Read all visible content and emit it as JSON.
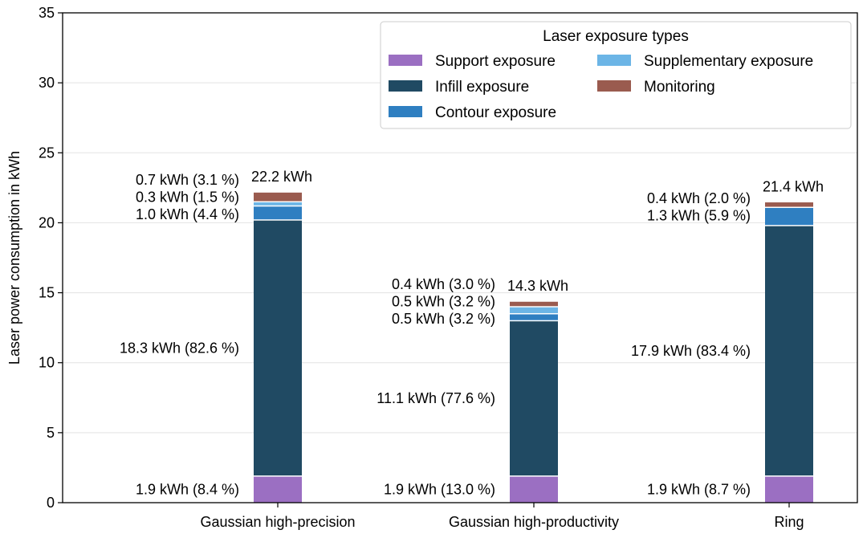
{
  "chart_data": {
    "type": "bar",
    "stacked": true,
    "ylabel": "Laser power consumption in kWh",
    "ylim": [
      0,
      35
    ],
    "yticks": [
      0,
      5,
      10,
      15,
      20,
      25,
      30,
      35
    ],
    "grid": "y",
    "categories": [
      "Gaussian high-precision",
      "Gaussian high-productivity",
      "Ring"
    ],
    "series": [
      {
        "name": "Support exposure",
        "color": "#9b6fc2",
        "values": [
          1.9,
          1.9,
          1.9
        ]
      },
      {
        "name": "Infill exposure",
        "color": "#204a63",
        "values": [
          18.3,
          11.1,
          17.9
        ]
      },
      {
        "name": "Contour exposure",
        "color": "#2f7fc1",
        "values": [
          1.0,
          0.5,
          1.3
        ]
      },
      {
        "name": "Supplementary exposure",
        "color": "#6cb5e6",
        "values": [
          0.3,
          0.5,
          0.0
        ]
      },
      {
        "name": "Monitoring",
        "color": "#9a5b4f",
        "values": [
          0.7,
          0.4,
          0.4
        ]
      }
    ],
    "totals": [
      "22.2 kWh",
      "14.3 kWh",
      "21.4 kWh"
    ],
    "segment_labels": [
      [
        {
          "series": 0,
          "text": "1.9 kWh (8.4 %)"
        },
        {
          "series": 1,
          "text": "18.3 kWh (82.6 %)"
        },
        {
          "series": 2,
          "text": "1.0 kWh (4.4 %)"
        },
        {
          "series": 3,
          "text": "0.3 kWh (1.5 %)"
        },
        {
          "series": 4,
          "text": "0.7 kWh (3.1 %)"
        }
      ],
      [
        {
          "series": 0,
          "text": "1.9 kWh (13.0 %)"
        },
        {
          "series": 1,
          "text": "11.1 kWh (77.6 %)"
        },
        {
          "series": 2,
          "text": "0.5 kWh (3.2 %)"
        },
        {
          "series": 3,
          "text": "0.5 kWh (3.2 %)"
        },
        {
          "series": 4,
          "text": "0.4 kWh (3.0 %)"
        }
      ],
      [
        {
          "series": 0,
          "text": "1.9 kWh (8.7 %)"
        },
        {
          "series": 1,
          "text": "17.9 kWh (83.4 %)"
        },
        {
          "series": 2,
          "text": "1.3 kWh (5.9 %)"
        },
        {
          "series": 4,
          "text": "0.4 kWh (2.0 %)"
        }
      ]
    ],
    "legend": {
      "title": "Laser exposure types",
      "placement": "top-right",
      "columns": 2
    }
  }
}
